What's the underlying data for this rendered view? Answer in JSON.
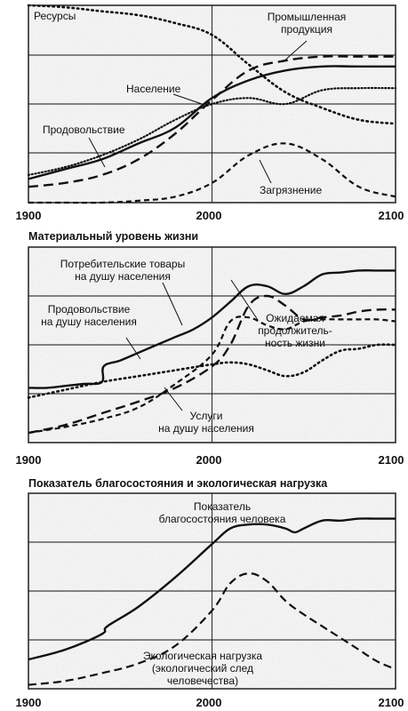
{
  "chart_data": [
    {
      "type": "line",
      "title": "",
      "x_ticks": [
        "1900",
        "2000",
        "2100"
      ],
      "xlim": [
        1900,
        2100
      ],
      "ylim": [
        0,
        100
      ],
      "grid": true,
      "series": [
        {
          "name": "Ресурсы",
          "style": "dotted",
          "x": [
            1900,
            1920,
            1940,
            1960,
            1980,
            2000,
            2020,
            2040,
            2060,
            2080,
            2100
          ],
          "y": [
            100,
            99,
            97,
            95,
            91,
            85,
            70,
            56,
            48,
            42,
            40
          ]
        },
        {
          "name": "Промышленная продукция",
          "style": "long-dash",
          "x": [
            1900,
            1920,
            1940,
            1960,
            1980,
            2000,
            2020,
            2040,
            2060,
            2080,
            2100
          ],
          "y": [
            8,
            10,
            14,
            22,
            35,
            52,
            67,
            72,
            74,
            74,
            74
          ]
        },
        {
          "name": "Население",
          "style": "solid",
          "x": [
            1900,
            1920,
            1940,
            1960,
            1980,
            2000,
            2020,
            2040,
            2060,
            2080,
            2100
          ],
          "y": [
            12,
            17,
            22,
            30,
            38,
            53,
            62,
            67,
            69,
            69,
            69
          ]
        },
        {
          "name": "Продовольствие",
          "style": "fine-dotted",
          "x": [
            1900,
            1920,
            1940,
            1960,
            1980,
            2000,
            2020,
            2040,
            2060,
            2080,
            2100
          ],
          "y": [
            14,
            18,
            24,
            32,
            42,
            50,
            53,
            50,
            57,
            58,
            58
          ]
        },
        {
          "name": "Загрязнение",
          "style": "short-dash",
          "x": [
            1900,
            1920,
            1940,
            1960,
            1980,
            2000,
            2020,
            2040,
            2060,
            2080,
            2100
          ],
          "y": [
            0,
            0,
            0,
            1,
            3,
            10,
            24,
            30,
            22,
            8,
            3
          ]
        }
      ],
      "labels": [
        "Ресурсы",
        "Промышленная продукция",
        "Население",
        "Продовольствие",
        "Загрязнение"
      ]
    },
    {
      "type": "line",
      "title": "Материальный уровень жизни",
      "x_ticks": [
        "1900",
        "2000",
        "2100"
      ],
      "xlim": [
        1900,
        2100
      ],
      "ylim": [
        0,
        100
      ],
      "grid": true,
      "series": [
        {
          "name": "Потребительские товары на душу населения",
          "style": "solid",
          "x": [
            1900,
            1910,
            1920,
            1930,
            1940,
            1941,
            1950,
            1960,
            1970,
            1980,
            1990,
            2000,
            2010,
            2020,
            2030,
            2040,
            2050,
            2060,
            2070,
            2080,
            2090,
            2100
          ],
          "y": [
            28,
            28,
            29,
            30,
            31,
            39,
            42,
            46,
            50,
            54,
            58,
            64,
            72,
            80,
            80,
            76,
            80,
            86,
            87,
            88,
            88,
            88
          ]
        },
        {
          "name": "Продовольствие на душу населения",
          "style": "dotted",
          "x": [
            1900,
            1920,
            1940,
            1960,
            1980,
            2000,
            2010,
            2020,
            2030,
            2040,
            2050,
            2060,
            2070,
            2080,
            2090,
            2100
          ],
          "y": [
            23,
            27,
            31,
            34,
            37,
            40,
            41,
            40,
            37,
            34,
            36,
            42,
            47,
            48,
            50,
            50
          ]
        },
        {
          "name": "Ожидаемая продолжительность жизни",
          "style": "long-dash",
          "x": [
            1900,
            1920,
            1940,
            1960,
            1980,
            2000,
            2010,
            2020,
            2030,
            2040,
            2050,
            2060,
            2070,
            2080,
            2090,
            2100
          ],
          "y": [
            5,
            9,
            15,
            21,
            28,
            39,
            50,
            70,
            75,
            70,
            63,
            64,
            65,
            67,
            68,
            68
          ]
        },
        {
          "name": "Услуги на душу населения",
          "style": "short-dash",
          "x": [
            1900,
            1920,
            1940,
            1960,
            1980,
            2000,
            2010,
            2020,
            2030,
            2040,
            2050,
            2060,
            2070,
            2080,
            2090,
            2100
          ],
          "y": [
            5,
            8,
            12,
            18,
            30,
            45,
            62,
            64,
            60,
            58,
            62,
            63,
            63,
            63,
            63,
            62
          ]
        }
      ],
      "labels": [
        "Потребительские товары на душу населения",
        "Продовольствие на душу населения",
        "Ожидаемая продолжитель-ность жизни",
        "Услуги на душу населения"
      ]
    },
    {
      "type": "line",
      "title": "Показатель благосостояния и экологическая нагрузка",
      "x_ticks": [
        "1900",
        "2000",
        "2100"
      ],
      "xlim": [
        1900,
        2100
      ],
      "ylim": [
        0,
        100
      ],
      "grid": true,
      "series": [
        {
          "name": "Показатель благосостояния человека",
          "style": "solid",
          "x": [
            1900,
            1920,
            1940,
            1943,
            1960,
            1980,
            2000,
            2010,
            2020,
            2030,
            2040,
            2045,
            2050,
            2060,
            2070,
            2080,
            2090,
            2100
          ],
          "y": [
            15,
            20,
            28,
            32,
            42,
            57,
            74,
            82,
            84,
            84,
            82,
            80,
            82,
            86,
            86,
            87,
            87,
            87
          ]
        },
        {
          "name": "Экологическая нагрузка (экологический след человечества)",
          "style": "dashed",
          "x": [
            1900,
            1920,
            1940,
            1960,
            1980,
            2000,
            2010,
            2020,
            2030,
            2040,
            2050,
            2060,
            2070,
            2080,
            2090,
            2100
          ],
          "y": [
            2,
            4,
            8,
            13,
            22,
            40,
            54,
            59,
            55,
            45,
            38,
            32,
            26,
            20,
            14,
            10
          ]
        }
      ],
      "labels": [
        "Показатель благосостояния человека",
        "Экологическая нагрузка (экологический след человечества)"
      ]
    }
  ]
}
